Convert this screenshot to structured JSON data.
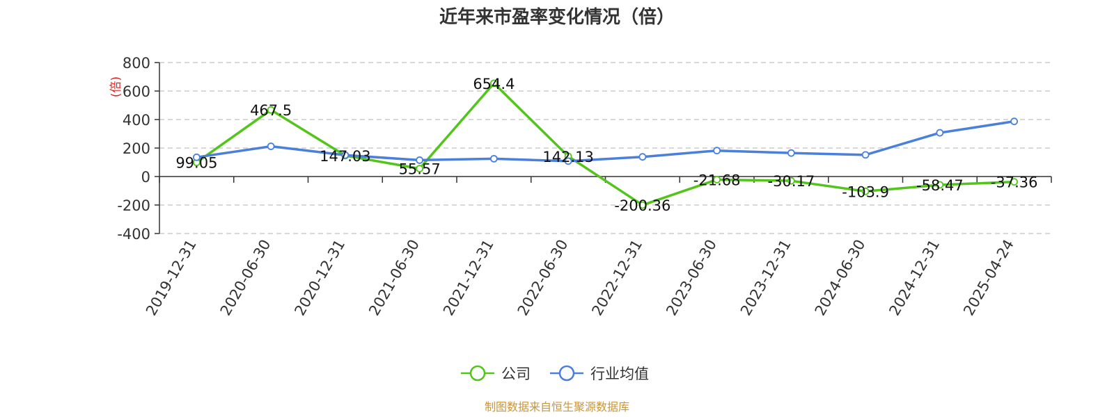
{
  "chart_data": {
    "type": "line",
    "title": "近年来市盈率变化情况（倍）",
    "ylabel": "(倍)",
    "xlabel": "",
    "categories": [
      "2019-12-31",
      "2020-06-30",
      "2020-12-31",
      "2021-06-30",
      "2021-12-31",
      "2022-06-30",
      "2022-12-31",
      "2023-06-30",
      "2023-12-31",
      "2024-06-30",
      "2024-12-31",
      "2025-04-24"
    ],
    "ylim": [
      -400,
      800
    ],
    "yticks": [
      "800",
      "600",
      "400",
      "200",
      "0",
      "-200",
      "-400"
    ],
    "grid": true,
    "legend_position": "bottom",
    "series": [
      {
        "name": "公司",
        "color": "#52c41a",
        "values": [
          99.05,
          467.5,
          147.03,
          55.57,
          654.4,
          142.13,
          -200.36,
          -21.68,
          -30.17,
          -103.9,
          -58.47,
          -37.36
        ],
        "labels": [
          "99.05",
          "467.5",
          "147.03",
          "55.57",
          "654.4",
          "142.13",
          "-200.36",
          "-21.68",
          "-30.17",
          "-103.9",
          "-58.47",
          "-37.36"
        ]
      },
      {
        "name": "行业均值",
        "color": "#4a7fdc",
        "values": [
          135,
          212,
          150,
          115,
          125,
          108,
          138,
          182,
          165,
          152,
          307,
          387
        ]
      }
    ],
    "source": "制图数据来自恒生聚源数据库"
  }
}
